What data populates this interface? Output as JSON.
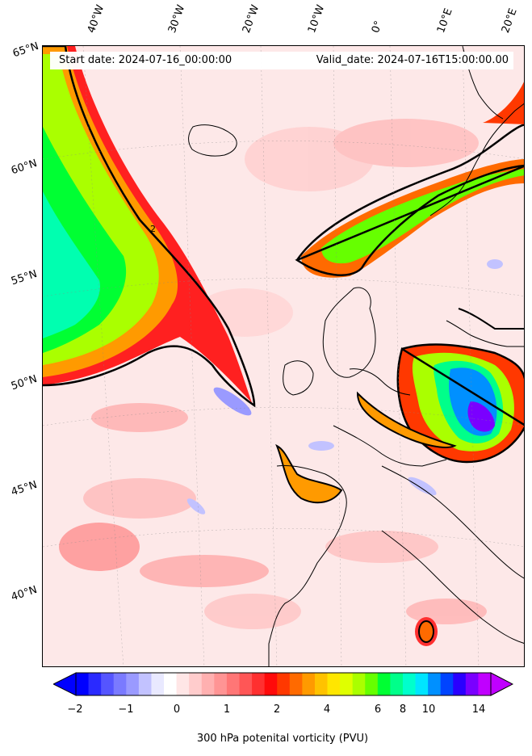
{
  "header": {
    "start_date": "Start date: 2024-07-16_00:00:00",
    "valid_date": "Valid_date: 2024-07-16T15:00:00.00"
  },
  "map": {
    "variable": "300 hPa potential vorticity",
    "contour_label": "2",
    "longitude_labels": [
      "40°W",
      "30°W",
      "20°W",
      "10°W",
      "0°",
      "10°E",
      "20°E"
    ],
    "latitude_labels": [
      "65°N",
      "60°N",
      "55°N",
      "50°N",
      "45°N",
      "40°N"
    ]
  },
  "colorbar": {
    "label": "300 hPa potenital vorticity (PVU)",
    "tick_labels": [
      "−2",
      "−1",
      "0",
      "1",
      "2",
      "4",
      "6",
      "8",
      "10",
      "14"
    ],
    "colors": [
      "#0000ff",
      "#2a2aff",
      "#5555ff",
      "#7a7aff",
      "#9a9aff",
      "#c2c2ff",
      "#e9e9ff",
      "#ffffff",
      "#ffe6e6",
      "#ffcccc",
      "#ffb0b0",
      "#ff9494",
      "#ff7676",
      "#ff5656",
      "#ff3030",
      "#ff0a0a",
      "#ff3800",
      "#ff6a00",
      "#ff9a00",
      "#ffc200",
      "#ffe600",
      "#dfff00",
      "#aaff00",
      "#66ff00",
      "#00ff33",
      "#00ff8a",
      "#00ffcc",
      "#00e5ff",
      "#0090ff",
      "#0044ff",
      "#2a00ff",
      "#7a00ff",
      "#c000ff"
    ]
  }
}
